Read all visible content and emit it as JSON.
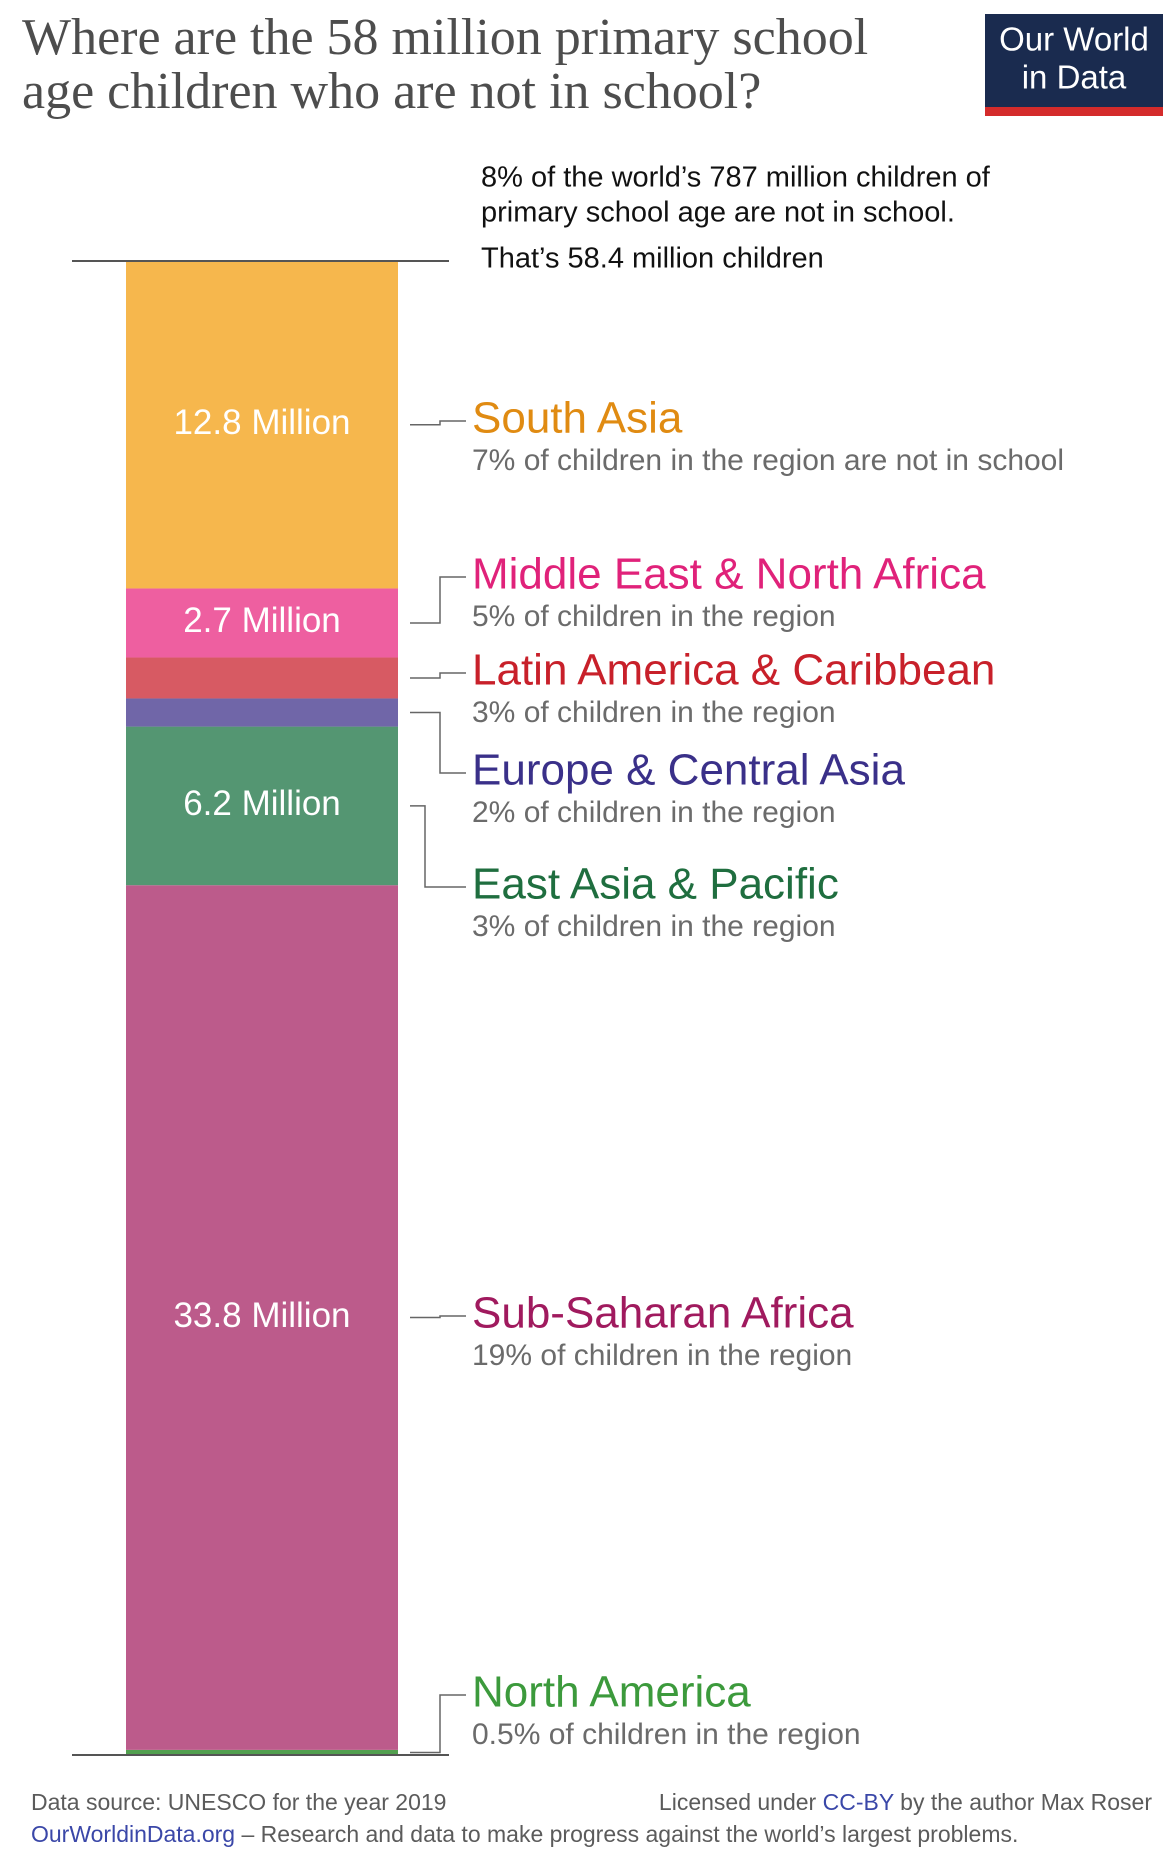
{
  "header": {
    "title": [
      "Where are the 58 million primary school",
      "age children who are not in school?"
    ],
    "logo": [
      "Our World",
      "in Data"
    ]
  },
  "chart_data": {
    "type": "stacked-bar",
    "annotations": [
      "8% of the world’s 787 million children of",
      "primary school age are not in school.",
      "That’s 58.4 million children"
    ],
    "ylim": [
      0,
      58.4
    ],
    "series": [
      {
        "name": "South Asia",
        "color": "#f6b74d",
        "label_color": "#e08b12",
        "values": [
          12.8
        ],
        "value_labels": [
          "12.8 Million"
        ],
        "note": "7% of children in the region are not in school"
      },
      {
        "name": "Middle East & North Africa",
        "color": "#ee5fa0",
        "label_color": "#e0227a",
        "values": [
          2.7
        ],
        "value_labels": [
          "2.7 Million"
        ],
        "note": "5% of children in the region"
      },
      {
        "name": "Latin America & Caribbean",
        "color": "#d75a63",
        "label_color": "#c8202a",
        "values": [
          1.6
        ],
        "note": "3% of children in the region"
      },
      {
        "name": "Europe & Central Asia",
        "color": "#7066a8",
        "label_color": "#3a3089",
        "values": [
          1.1
        ],
        "note": "2% of children in the region"
      },
      {
        "name": "East Asia & Pacific",
        "color": "#549672",
        "label_color": "#1f6e3f",
        "values": [
          6.2
        ],
        "value_labels": [
          "6.2 Million"
        ],
        "note": "3% of children in the region"
      },
      {
        "name": "Sub-Saharan Africa",
        "color": "#bc5b8b",
        "label_color": "#a01a5e",
        "values": [
          33.8
        ],
        "value_labels": [
          "33.8 Million"
        ],
        "note": "19% of children in the region"
      },
      {
        "name": "North America",
        "color": "#52a04f",
        "label_color": "#3c9a3c",
        "values": [
          0.2
        ],
        "note": "0.5% of children in the region"
      }
    ]
  },
  "footer": {
    "source": "Data source: UNESCO for the year 2019",
    "license_prefix": "Licensed under",
    "license_link": "CC-BY",
    "license_suffix": "by the author Max Roser",
    "site": "OurWorldinData.org",
    "tagline": "– Research and data to make progress against the world’s largest problems."
  }
}
